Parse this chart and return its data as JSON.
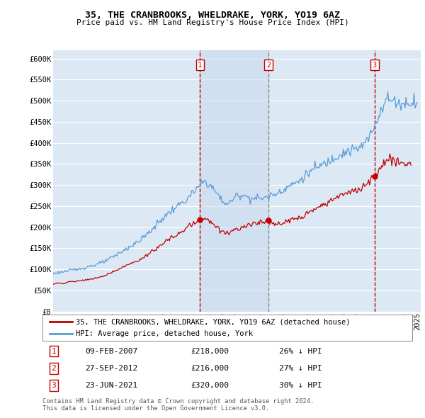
{
  "title": "35, THE CRANBROOKS, WHELDRAKE, YORK, YO19 6AZ",
  "subtitle": "Price paid vs. HM Land Registry's House Price Index (HPI)",
  "ylabel_ticks": [
    "£0",
    "£50K",
    "£100K",
    "£150K",
    "£200K",
    "£250K",
    "£300K",
    "£350K",
    "£400K",
    "£450K",
    "£500K",
    "£550K",
    "£600K"
  ],
  "ytick_values": [
    0,
    50000,
    100000,
    150000,
    200000,
    250000,
    300000,
    350000,
    400000,
    450000,
    500000,
    550000,
    600000
  ],
  "hpi_color": "#5b9bd5",
  "price_color": "#c00000",
  "vline_color": "#c00000",
  "vline2_color": "#888888",
  "background_color": "#dce9f5",
  "shade_color": "#d0e4f5",
  "legend_entries": [
    "35, THE CRANBROOKS, WHELDRAKE, YORK, YO19 6AZ (detached house)",
    "HPI: Average price, detached house, York"
  ],
  "table_rows": [
    [
      "1",
      "09-FEB-2007",
      "£218,000",
      "26% ↓ HPI"
    ],
    [
      "2",
      "27-SEP-2012",
      "£216,000",
      "27% ↓ HPI"
    ],
    [
      "3",
      "23-JUN-2021",
      "£320,000",
      "30% ↓ HPI"
    ]
  ],
  "footnote": "Contains HM Land Registry data © Crown copyright and database right 2024.\nThis data is licensed under the Open Government Licence v3.0.",
  "xmin": 1995,
  "xmax": 2025
}
